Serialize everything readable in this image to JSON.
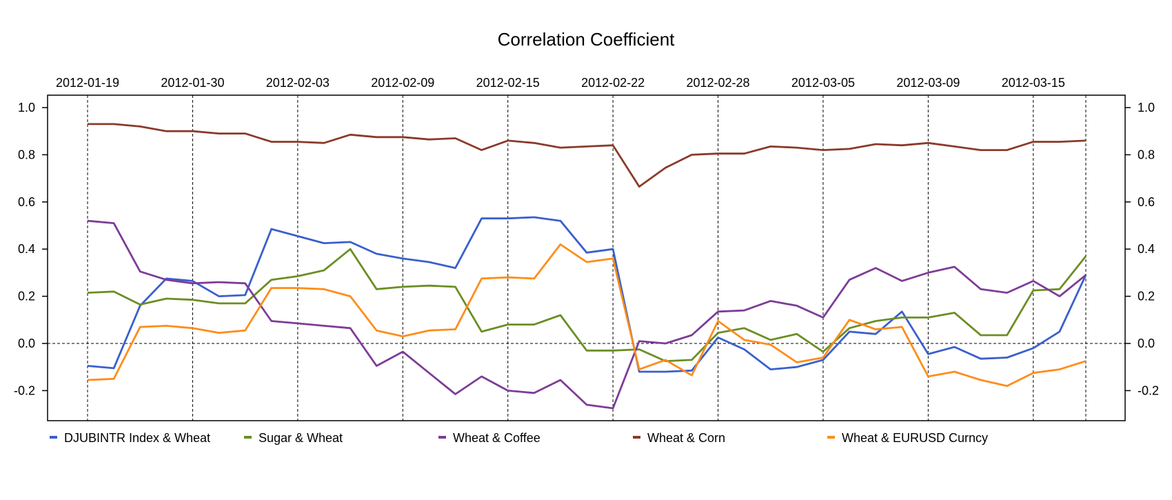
{
  "chart_data": {
    "type": "line",
    "title": "Correlation Coefficient",
    "xlabel": "",
    "ylabel": "",
    "ylim": [
      -0.3,
      1.05
    ],
    "y_ticks": [
      1.0,
      0.8,
      0.6,
      0.4,
      0.2,
      0.0,
      -0.2
    ],
    "y_tick_labels": [
      "1.0",
      "0.8",
      "0.6",
      "0.4",
      "0.2",
      "0.0",
      "-0.2"
    ],
    "x_tick_labels": [
      "2012-01-19",
      "2012-01-30",
      "2012-02-03",
      "2012-02-09",
      "2012-02-15",
      "2012-02-22",
      "2012-02-28",
      "2012-03-05",
      "2012-03-09",
      "2012-03-15"
    ],
    "x_tick_indices": [
      0,
      4,
      8,
      12,
      16,
      20,
      24,
      28,
      32,
      36
    ],
    "n_points": 39,
    "grid": "vertical dashed at x ticks, horizontal dashed at 0",
    "legend_position": "bottom",
    "series": [
      {
        "name": "DJUBINTR Index  &  Wheat",
        "color": "#3A5FCD",
        "values": [
          -0.095,
          -0.105,
          0.16,
          0.275,
          0.265,
          0.2,
          0.205,
          0.485,
          0.455,
          0.425,
          0.43,
          0.38,
          0.36,
          0.345,
          0.32,
          0.53,
          0.53,
          0.535,
          0.52,
          0.385,
          0.4,
          -0.12,
          -0.12,
          -0.115,
          0.025,
          -0.025,
          -0.11,
          -0.1,
          -0.07,
          0.05,
          0.04,
          0.135,
          -0.045,
          -0.015,
          -0.065,
          -0.06,
          -0.02,
          0.05,
          0.29
        ]
      },
      {
        "name": "Sugar  &  Wheat",
        "color": "#6B8E23",
        "values": [
          0.215,
          0.22,
          0.165,
          0.19,
          0.185,
          0.17,
          0.17,
          0.27,
          0.285,
          0.31,
          0.4,
          0.23,
          0.24,
          0.245,
          0.24,
          0.05,
          0.08,
          0.08,
          0.12,
          -0.03,
          -0.03,
          -0.025,
          -0.075,
          -0.07,
          0.045,
          0.065,
          0.015,
          0.04,
          -0.035,
          0.065,
          0.095,
          0.11,
          0.11,
          0.13,
          0.035,
          0.035,
          0.225,
          0.23,
          0.37
        ]
      },
      {
        "name": "Wheat  &  Coffee",
        "color": "#7D3C98",
        "values": [
          0.52,
          0.51,
          0.305,
          0.27,
          0.255,
          0.26,
          0.255,
          0.095,
          0.085,
          0.075,
          0.065,
          -0.095,
          -0.035,
          -0.125,
          -0.215,
          -0.14,
          -0.2,
          -0.21,
          -0.155,
          -0.26,
          -0.275,
          0.01,
          0.0,
          0.035,
          0.135,
          0.14,
          0.18,
          0.16,
          0.11,
          0.27,
          0.32,
          0.265,
          0.3,
          0.325,
          0.23,
          0.215,
          0.265,
          0.2,
          0.29
        ]
      },
      {
        "name": "Wheat  &  Corn",
        "color": "#8B3A2A",
        "values": [
          0.93,
          0.93,
          0.92,
          0.9,
          0.9,
          0.89,
          0.89,
          0.855,
          0.855,
          0.85,
          0.885,
          0.875,
          0.875,
          0.865,
          0.87,
          0.82,
          0.86,
          0.85,
          0.83,
          0.835,
          0.84,
          0.665,
          0.745,
          0.8,
          0.805,
          0.805,
          0.835,
          0.83,
          0.82,
          0.825,
          0.845,
          0.84,
          0.85,
          0.835,
          0.82,
          0.82,
          0.855,
          0.855,
          0.86
        ]
      },
      {
        "name": "Wheat  &  EURUSD Curncy",
        "color": "#FF8C1A",
        "values": [
          -0.155,
          -0.15,
          0.07,
          0.075,
          0.065,
          0.045,
          0.055,
          0.235,
          0.235,
          0.23,
          0.2,
          0.055,
          0.03,
          0.055,
          0.06,
          0.275,
          0.28,
          0.275,
          0.42,
          0.345,
          0.36,
          -0.11,
          -0.07,
          -0.135,
          0.095,
          0.015,
          -0.005,
          -0.08,
          -0.06,
          0.1,
          0.06,
          0.07,
          -0.14,
          -0.12,
          -0.155,
          -0.18,
          -0.125,
          -0.11,
          -0.075
        ]
      }
    ]
  }
}
